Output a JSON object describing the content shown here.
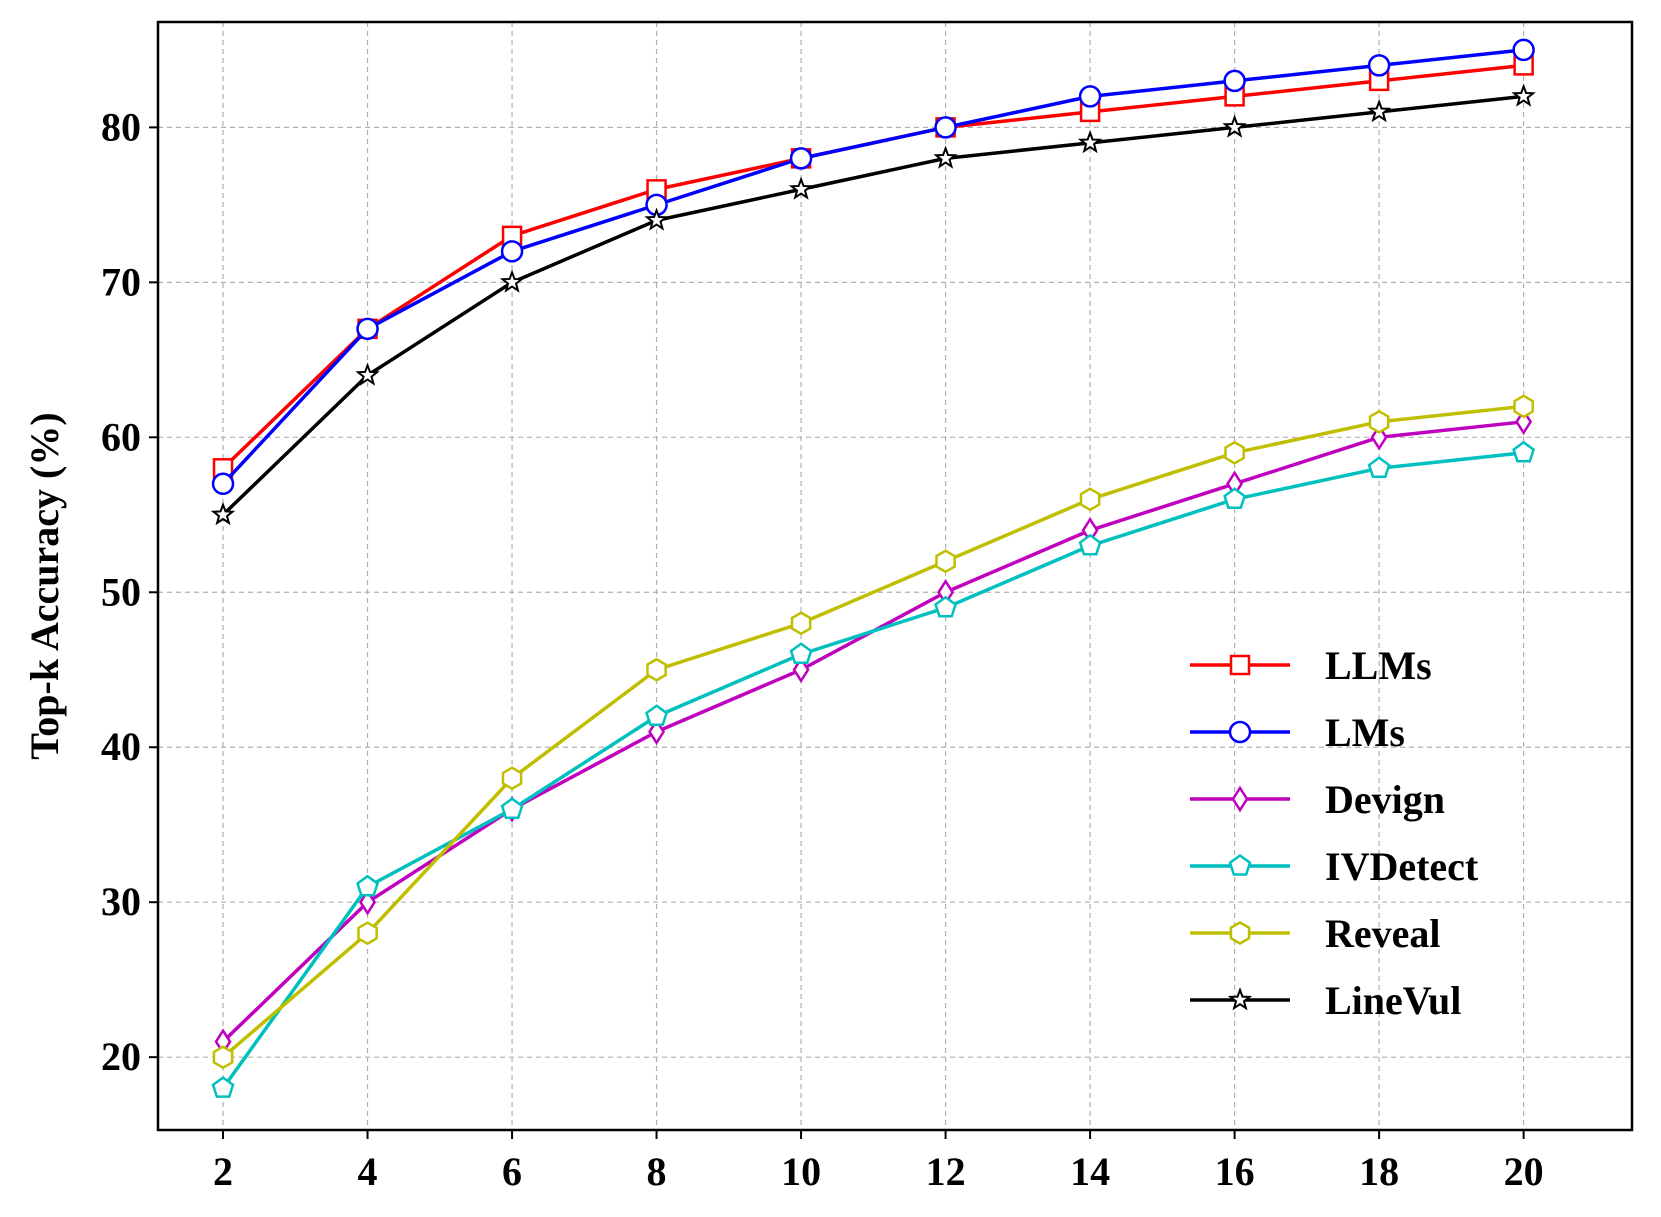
{
  "chart_data": {
    "type": "line",
    "title": "",
    "xlabel": "",
    "ylabel": "Top-k Accuracy (%)",
    "x": [
      2,
      4,
      6,
      8,
      10,
      12,
      14,
      16,
      18,
      20
    ],
    "xlim": [
      1.1,
      21.5
    ],
    "ylim": [
      15.3,
      86.8
    ],
    "xticks": [
      2,
      4,
      6,
      8,
      10,
      12,
      14,
      16,
      18,
      20
    ],
    "yticks": [
      20,
      30,
      40,
      50,
      60,
      70,
      80
    ],
    "grid": true,
    "legend_position": "lower-right",
    "series": [
      {
        "name": "LLMs",
        "color": "#ff0000",
        "marker": "square",
        "values": [
          58,
          67,
          73,
          76,
          78,
          80,
          81,
          82,
          83,
          84
        ]
      },
      {
        "name": "LMs",
        "color": "#0000ff",
        "marker": "circle",
        "values": [
          57,
          67,
          72,
          75,
          78,
          80,
          82,
          83,
          84,
          85
        ]
      },
      {
        "name": "Devign",
        "color": "#bf00bf",
        "marker": "thin-diamond",
        "values": [
          21,
          30,
          36,
          41,
          45,
          50,
          54,
          57,
          60,
          61
        ]
      },
      {
        "name": "IVDetect",
        "color": "#00bfbf",
        "marker": "pentagon",
        "values": [
          18,
          31,
          36,
          42,
          46,
          49,
          53,
          56,
          58,
          59
        ]
      },
      {
        "name": "Reveal",
        "color": "#bfbf00",
        "marker": "hexagon",
        "values": [
          20,
          28,
          38,
          45,
          48,
          52,
          56,
          59,
          61,
          62
        ]
      },
      {
        "name": "LineVul",
        "color": "#000000",
        "marker": "star",
        "values": [
          55,
          64,
          70,
          74,
          76,
          78,
          79,
          80,
          81,
          82
        ]
      }
    ]
  }
}
